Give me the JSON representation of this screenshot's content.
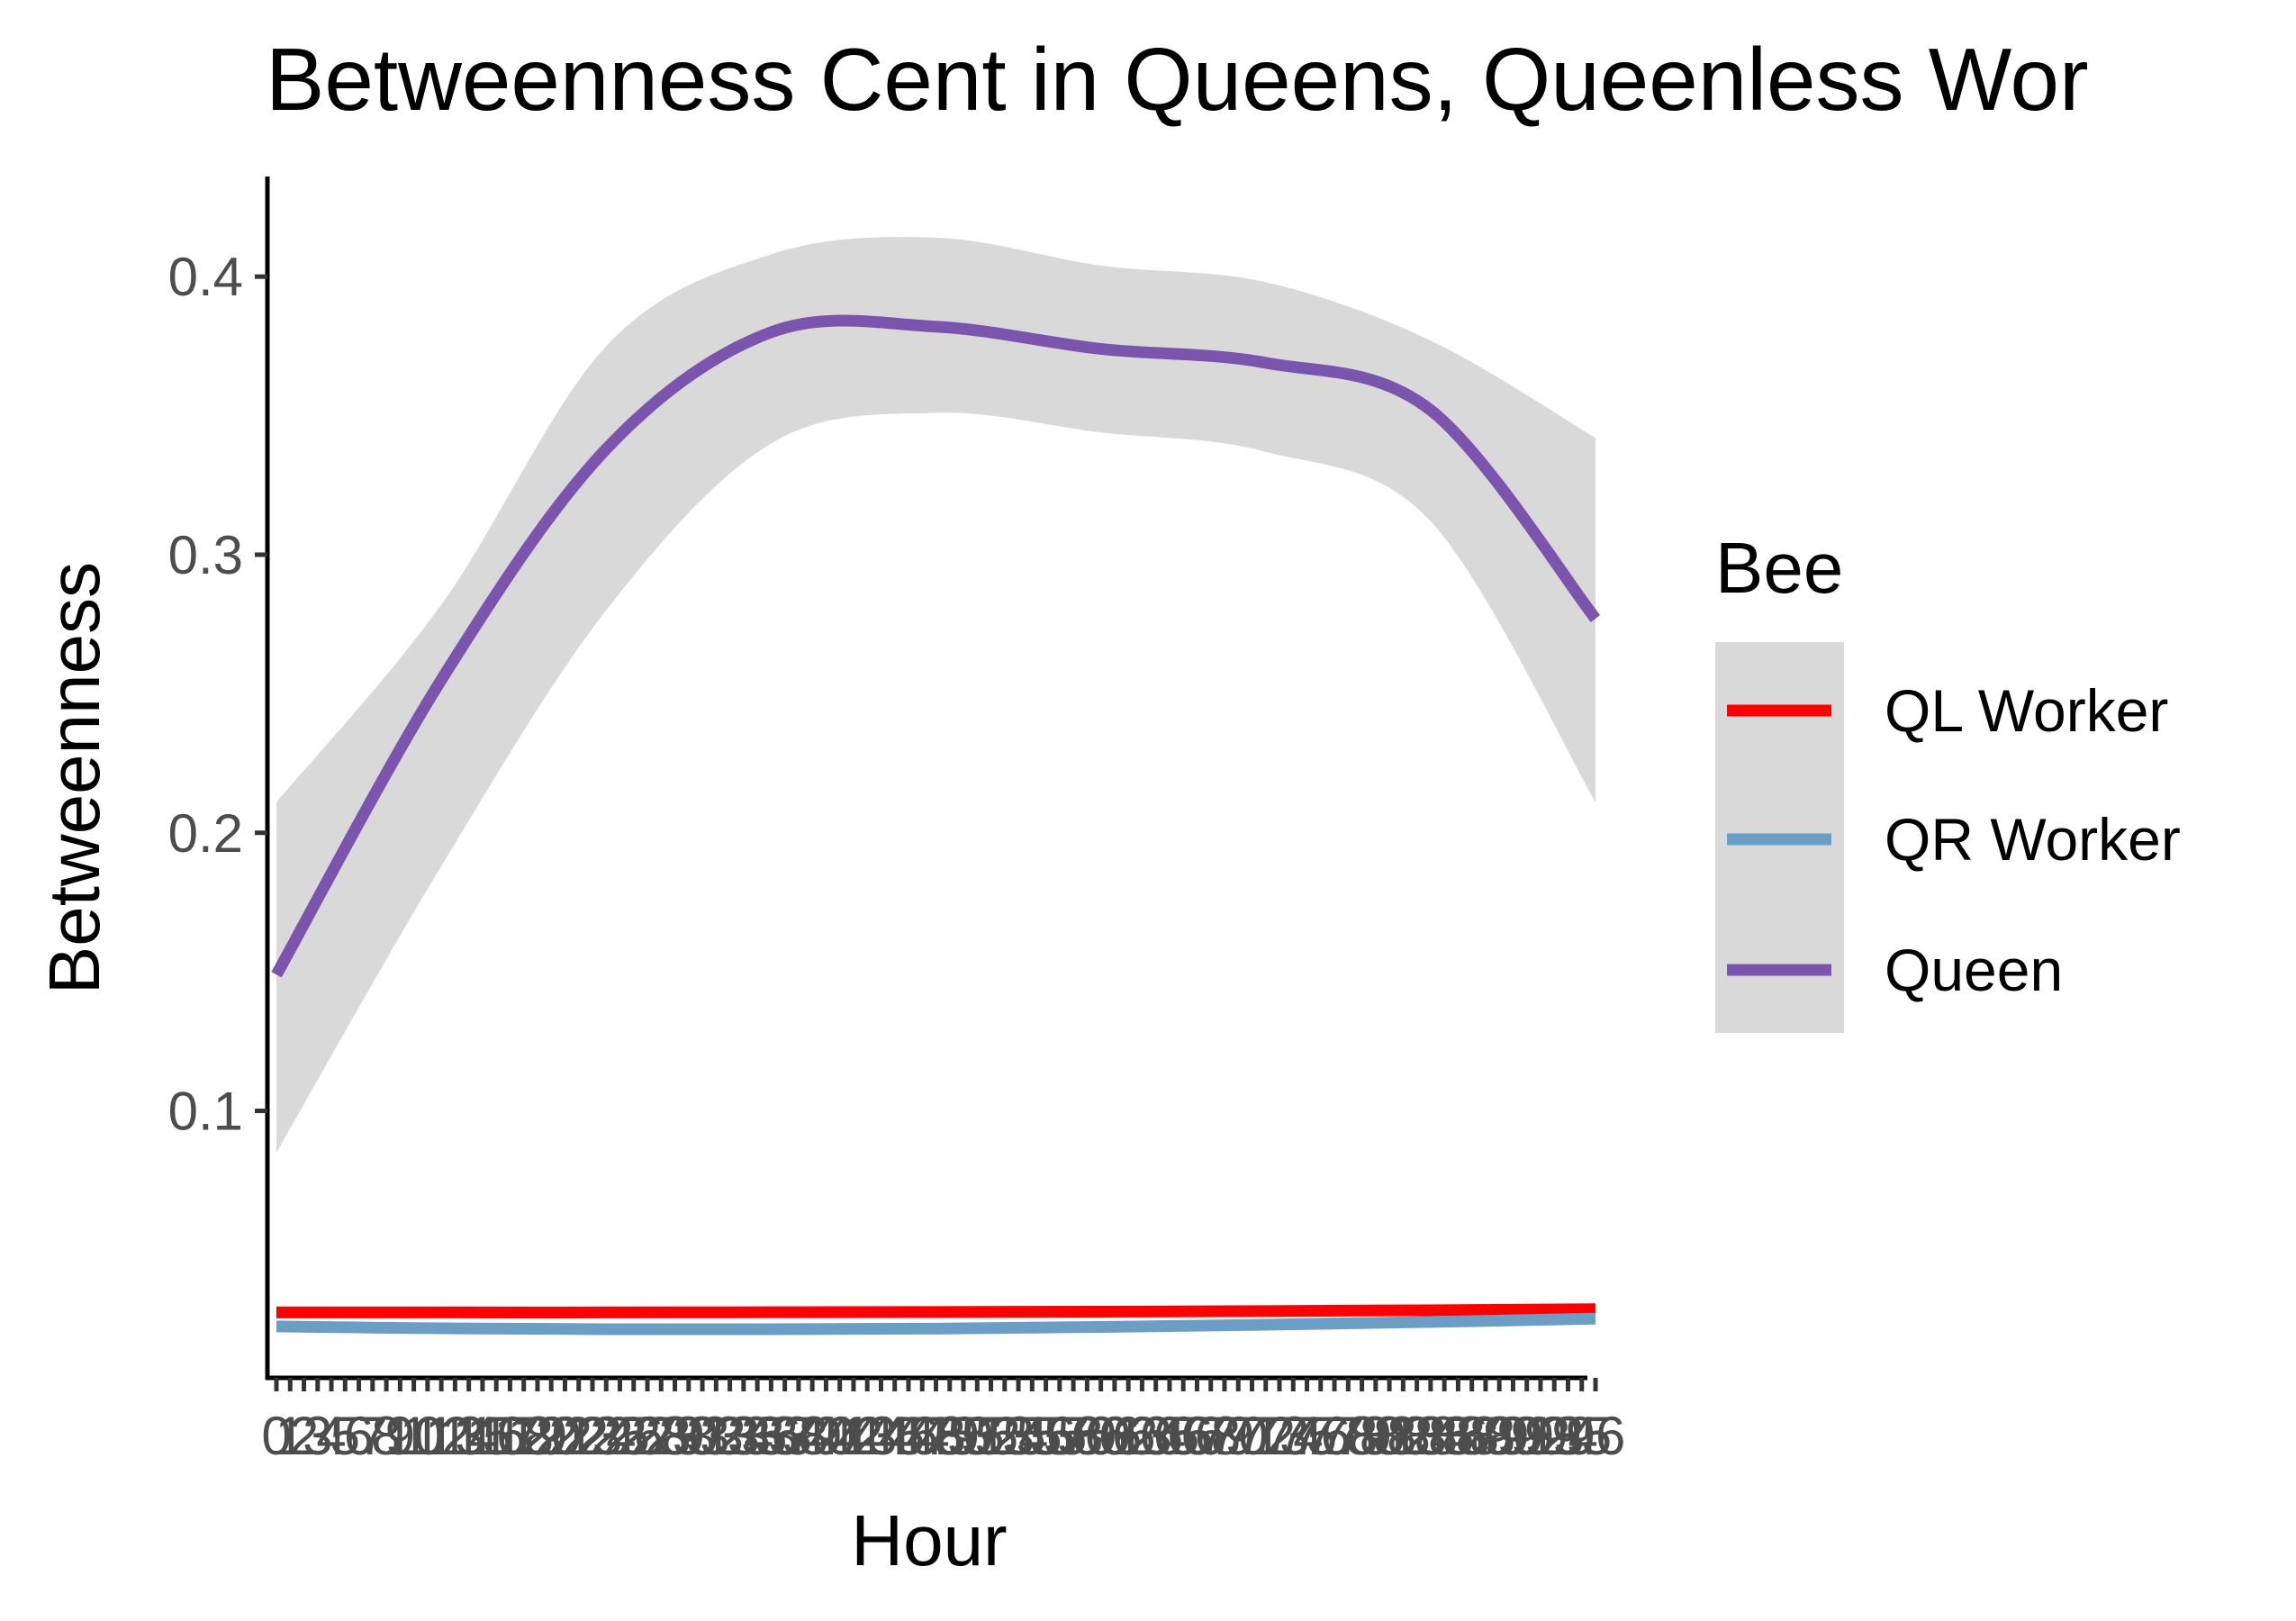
{
  "chart_data": {
    "type": "line",
    "title": "Betweenness Cent in Queens, Queenless Wor",
    "xlabel": "Hour",
    "ylabel": "Betweenness",
    "x": [
      0,
      12,
      24,
      36,
      48,
      60,
      72,
      84,
      96
    ],
    "x_range": [
      0,
      96
    ],
    "x_tick_labels_overplotted": true,
    "x_tick_labels_visible": [
      "0",
      "96"
    ],
    "ylim": [
      0.004,
      0.436
    ],
    "y_ticks": [
      0.1,
      0.2,
      0.3,
      0.4
    ],
    "y_tick_labels": [
      "0.1",
      "0.2",
      "0.3",
      "0.4"
    ],
    "grid": false,
    "legend": {
      "title": "Bee",
      "position": "right"
    },
    "series": [
      {
        "name": "QL Worker",
        "color": "#ff0000",
        "values": [
          0.0275,
          0.0275,
          0.0275,
          0.0276,
          0.0277,
          0.0278,
          0.028,
          0.0283,
          0.0287
        ]
      },
      {
        "name": "QR Worker",
        "color": "#6a9ec5",
        "values": [
          0.0225,
          0.0218,
          0.0215,
          0.0215,
          0.0217,
          0.0223,
          0.0231,
          0.0241,
          0.0253
        ]
      },
      {
        "name": "Queen",
        "color": "#7b55ad",
        "values": [
          0.149,
          0.255,
          0.338,
          0.38,
          0.382,
          0.374,
          0.369,
          0.352,
          0.277
        ],
        "ci_lower": [
          0.085,
          0.188,
          0.28,
          0.34,
          0.351,
          0.344,
          0.337,
          0.312,
          0.211
        ],
        "ci_upper": [
          0.211,
          0.282,
          0.375,
          0.408,
          0.414,
          0.404,
          0.398,
          0.377,
          0.342
        ]
      }
    ],
    "ci_band_color": "#d9d9d9"
  }
}
